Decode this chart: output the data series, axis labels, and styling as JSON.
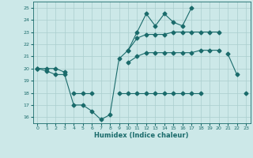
{
  "x_all": [
    0,
    1,
    2,
    3,
    4,
    5,
    6,
    7,
    8,
    9,
    10,
    11,
    12,
    13,
    14,
    15,
    16,
    17,
    18,
    19,
    20,
    21,
    22,
    23
  ],
  "line_upper": [
    20,
    null,
    null,
    null,
    null,
    null,
    null,
    null,
    null,
    null,
    21.5,
    22.5,
    22.8,
    22.8,
    22.8,
    23,
    23,
    23,
    23,
    23,
    23,
    null,
    null,
    null
  ],
  "line_mid": [
    20,
    20,
    20,
    19.7,
    null,
    null,
    null,
    null,
    null,
    null,
    20.5,
    21,
    21.3,
    21.3,
    21.3,
    21.3,
    21.3,
    21.3,
    21.5,
    21.5,
    21.5,
    null,
    null,
    null
  ],
  "line_jagged": [
    20,
    19.8,
    19.5,
    19.5,
    17,
    17,
    16.5,
    15.8,
    16.2,
    20.8,
    21.5,
    23,
    24.5,
    23.5,
    24.5,
    23.8,
    23.5,
    25,
    null,
    null,
    null,
    21.2,
    19.5,
    null
  ],
  "line_low": [
    null,
    null,
    null,
    null,
    18,
    18,
    18,
    null,
    null,
    18,
    18,
    18,
    18,
    18,
    18,
    18,
    18,
    18,
    18,
    null,
    null,
    null,
    null,
    18
  ],
  "bg_color": "#cce8e8",
  "line_color": "#1a6b6b",
  "grid_color": "#aacece",
  "xlabel": "Humidex (Indice chaleur)",
  "ylim": [
    15.5,
    25.5
  ],
  "xlim": [
    -0.5,
    23.5
  ],
  "yticks": [
    16,
    17,
    18,
    19,
    20,
    21,
    22,
    23,
    24,
    25
  ],
  "xticks": [
    0,
    1,
    2,
    3,
    4,
    5,
    6,
    7,
    8,
    9,
    10,
    11,
    12,
    13,
    14,
    15,
    16,
    17,
    18,
    19,
    20,
    21,
    22,
    23
  ]
}
